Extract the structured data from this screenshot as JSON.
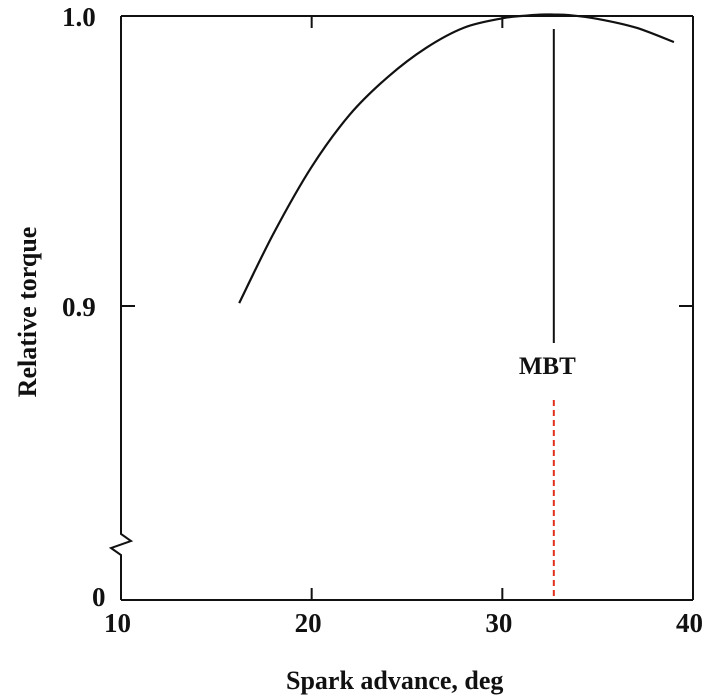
{
  "chart_data": {
    "type": "line",
    "title": "",
    "xlabel": "Spark advance, deg",
    "ylabel": "Relative torque",
    "xlim": [
      10,
      40
    ],
    "ylim": [
      0.9,
      1.0
    ],
    "x_ticks": [
      10,
      20,
      30,
      40
    ],
    "x_tick_labels": [
      "10",
      "20",
      "30",
      "40"
    ],
    "y_ticks": [
      0.9,
      1.0
    ],
    "y_tick_labels": [
      "0.9",
      "1.0"
    ],
    "y_axis_break": true,
    "y_origin_label": "0",
    "grid": false,
    "series": [
      {
        "x": [
          16.2,
          18,
          20,
          22,
          24,
          26,
          28,
          30,
          31,
          32,
          32.7,
          33.5,
          35,
          37,
          39
        ],
        "y": [
          0.901,
          0.925,
          0.948,
          0.966,
          0.979,
          0.989,
          0.996,
          0.9992,
          1.0,
          1.0005,
          1.0005,
          1.0003,
          0.999,
          0.996,
          0.991
        ]
      }
    ],
    "annotations": [
      {
        "text": "MBT",
        "x": 32.7
      }
    ],
    "colors": {
      "line": "#111111",
      "frame": "#111111",
      "mbt_dashed": "#e0301e",
      "background": "#ffffff"
    }
  }
}
